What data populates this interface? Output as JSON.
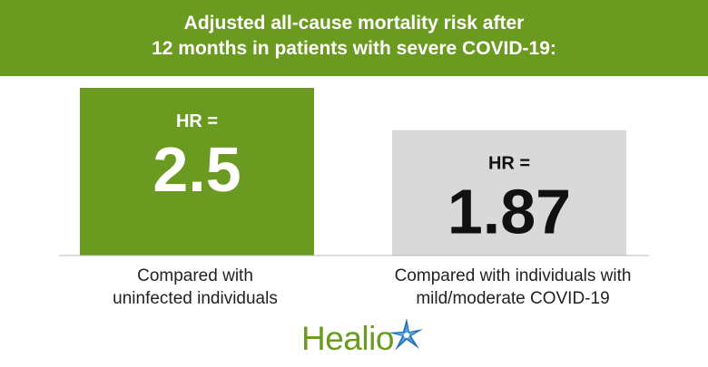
{
  "title": {
    "line1": "Adjusted all-cause mortality risk after",
    "line2": "12 months in patients with severe COVID-19:"
  },
  "chart_data": {
    "type": "bar",
    "title": "Adjusted all-cause mortality risk after 12 months in patients with severe COVID-19:",
    "value_prefix": "HR =",
    "categories": [
      [
        "Compared with",
        "uninfected individuals"
      ],
      [
        "Compared with individuals with",
        "mild/moderate COVID-19"
      ]
    ],
    "values": [
      2.5,
      1.87
    ],
    "value_labels": [
      "2.5",
      "1.87"
    ],
    "colors": [
      "#6a9a1f",
      "#d9d9d9"
    ],
    "value_colors": [
      "#ffffff",
      "#111111"
    ],
    "ylim": [
      0,
      2.5
    ]
  },
  "logo": {
    "text": "Healio",
    "color": "#6a9a1f"
  },
  "colors": {
    "banner": "#6a9a1f",
    "axis": "#b8b8b8"
  }
}
